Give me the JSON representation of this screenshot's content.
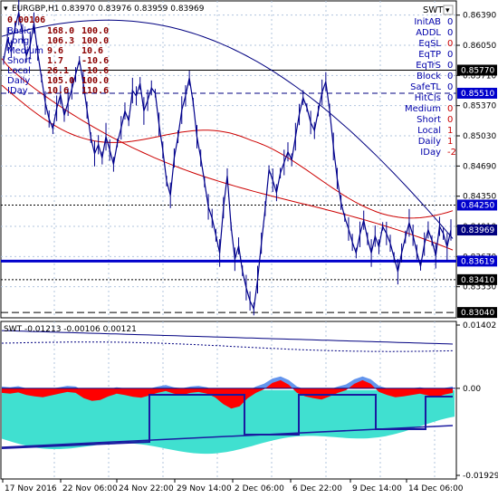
{
  "main_header": {
    "symbol": "EURGBP,H1",
    "ohlc": "0.83970 0.83976 0.83959 0.83969"
  },
  "left_info": {
    "first_value": "0.00106",
    "rows": [
      {
        "label": "Basic",
        "v1": "168.0",
        "v2": "100.0"
      },
      {
        "label": "Long",
        "v1": "106.3",
        "v2": "100.0"
      },
      {
        "label": "Medium",
        "v1": "9.6",
        "v2": "10.6"
      },
      {
        "label": "Short",
        "v1": "1.7",
        "v2": "-10.6"
      },
      {
        "label": "Local",
        "v1": "26.1",
        "v2": "-10.6"
      },
      {
        "label": "Daily",
        "v1": "105.0",
        "v2": "100.0"
      },
      {
        "label": "IDay",
        "v1": "10.6",
        "v2": "110.6"
      }
    ]
  },
  "right_info": {
    "title": "SWT",
    "rows": [
      {
        "label": "InitAB",
        "value": "0",
        "value_red": false
      },
      {
        "label": "ADDL",
        "value": "0",
        "value_red": false
      },
      {
        "label": "EqSL",
        "value": "0",
        "value_red": true
      },
      {
        "label": "EqTP",
        "value": "0",
        "value_red": false
      },
      {
        "label": "EqTrS",
        "value": "0",
        "value_red": false
      },
      {
        "label": "Block",
        "value": "0",
        "value_red": false
      },
      {
        "label": "SafeTL",
        "value": "0",
        "value_red": false
      },
      {
        "label": "HitCls",
        "value": "0",
        "value_red": false
      },
      {
        "label": "Medium",
        "value": "0",
        "value_red": true
      },
      {
        "label": "Short",
        "value": "0",
        "value_red": true
      },
      {
        "label": "Local",
        "value": "1",
        "value_red": true
      },
      {
        "label": "Daily",
        "value": "1",
        "value_red": true
      },
      {
        "label": "IDay",
        "value": "-2",
        "value_red": true
      }
    ]
  },
  "price_axis": {
    "ticks": [
      "0.86390",
      "0.86050",
      "0.85710",
      "0.85370",
      "0.85030",
      "0.84690",
      "0.84350",
      "0.84010",
      "0.83670",
      "0.83330"
    ],
    "tags": [
      {
        "text": "0.85770",
        "value": 0.8577,
        "bg": "#000000",
        "fg": "#ffffff"
      },
      {
        "text": "0.85510",
        "value": 0.8551,
        "bg": "#0000cc",
        "fg": "#ffffff"
      },
      {
        "text": "0.84250",
        "value": 0.8425,
        "bg": "#0000cc",
        "fg": "#ffffff"
      },
      {
        "text": "0.83969",
        "value": 0.83969,
        "bg": "#000080",
        "fg": "#ffffff"
      },
      {
        "text": "0.83619",
        "value": 0.83619,
        "bg": "#0000cc",
        "fg": "#ffffff"
      },
      {
        "text": "0.83410",
        "value": 0.8341,
        "bg": "#000000",
        "fg": "#ffffff"
      },
      {
        "text": "0.83040",
        "value": 0.8304,
        "bg": "#000000",
        "fg": "#ffffff"
      }
    ]
  },
  "indicator": {
    "header": "SWT -0.01213 -0.00106 0.00121",
    "ticks": [
      "0.01402",
      "0.00",
      "-0.01929"
    ]
  },
  "date_axis": {
    "labels": [
      "17 Nov 2016",
      "22 Nov 06:00",
      "24 Nov 22:00",
      "29 Nov 14:00",
      "2 Dec 06:00",
      "6 Dec 22:00",
      "9 Dec 14:00",
      "14 Dec 06:00"
    ]
  },
  "colors": {
    "price_line": "#00008b",
    "ma_red": "#cc0000",
    "ma_navy": "#000080",
    "grid": "#b0c4de",
    "teal_fill": "#40e0d0",
    "blue_fill": "#6495ed",
    "red_fill": "#ff0000"
  },
  "chart_data": [
    {
      "type": "line",
      "title": "EURGBP,H1",
      "ylim": [
        0.8298,
        0.8655
      ],
      "series": [
        {
          "name": "",
          "values": [
            0.8588,
            0.8612,
            0.8601,
            0.8625,
            0.8642,
            0.8618,
            0.8593,
            0.8605,
            0.863,
            0.8596,
            0.8568,
            0.854,
            0.8522,
            0.8511,
            0.8534,
            0.8549,
            0.8526,
            0.8541,
            0.8556,
            0.8572,
            0.8588,
            0.8563,
            0.8532,
            0.8501,
            0.8483,
            0.8493,
            0.8478,
            0.8502,
            0.8487,
            0.8471,
            0.8495,
            0.8512,
            0.8531,
            0.852,
            0.8554,
            0.8548,
            0.8562,
            0.8531,
            0.8543,
            0.8557,
            0.8551,
            0.8516,
            0.8487,
            0.8452,
            0.8436,
            0.8478,
            0.8502,
            0.8532,
            0.8548,
            0.8568,
            0.8541,
            0.8502,
            0.8478,
            0.8451,
            0.8423,
            0.841,
            0.8391,
            0.8371,
            0.8422,
            0.8458,
            0.8401,
            0.8364,
            0.8379,
            0.8351,
            0.8332,
            0.8317,
            0.8308,
            0.8341,
            0.8382,
            0.8421,
            0.8465,
            0.8453,
            0.8439,
            0.8461,
            0.8473,
            0.8485,
            0.8476,
            0.8502,
            0.8527,
            0.8546,
            0.8535,
            0.8518,
            0.8509,
            0.8531,
            0.8552,
            0.8564,
            0.8532,
            0.8491,
            0.8455,
            0.8428,
            0.8411,
            0.8398,
            0.8383,
            0.8371,
            0.8392,
            0.8408,
            0.8387,
            0.8371,
            0.839,
            0.8378,
            0.8401,
            0.8393,
            0.8382,
            0.8366,
            0.835,
            0.8371,
            0.8389,
            0.8405,
            0.8391,
            0.8372,
            0.8356,
            0.8381,
            0.8397,
            0.8385,
            0.8368,
            0.8401,
            0.8393,
            0.8378,
            0.8397
          ]
        }
      ]
    },
    {
      "type": "area",
      "title": "SWT",
      "ylim": [
        -0.01929,
        0.01402
      ],
      "series": [
        {
          "name": "",
          "values": [
            -0.001,
            -0.0012,
            -0.0009,
            -0.0015,
            -0.0018,
            -0.002,
            -0.0016,
            -0.0012,
            -0.0008,
            -0.001,
            -0.0022,
            -0.0028,
            -0.0026,
            -0.0018,
            -0.0012,
            -0.0015,
            -0.0019,
            -0.0021,
            -0.0016,
            -0.001,
            -0.0006,
            -0.0012,
            -0.0015,
            -0.001,
            -0.0008,
            -0.0012,
            -0.002,
            -0.0035,
            -0.0045,
            -0.004,
            -0.0022,
            -0.001,
            -0.0002,
            0.0012,
            0.0018,
            0.0008,
            -0.001,
            -0.0018,
            -0.0022,
            -0.0025,
            -0.0018,
            -0.001,
            -0.0004,
            0.001,
            0.0018,
            0.001,
            -0.0008,
            -0.0015,
            -0.002,
            -0.0018,
            -0.0015,
            -0.0012,
            -0.0016,
            -0.002,
            -0.0014,
            -0.001
          ]
        }
      ]
    }
  ]
}
